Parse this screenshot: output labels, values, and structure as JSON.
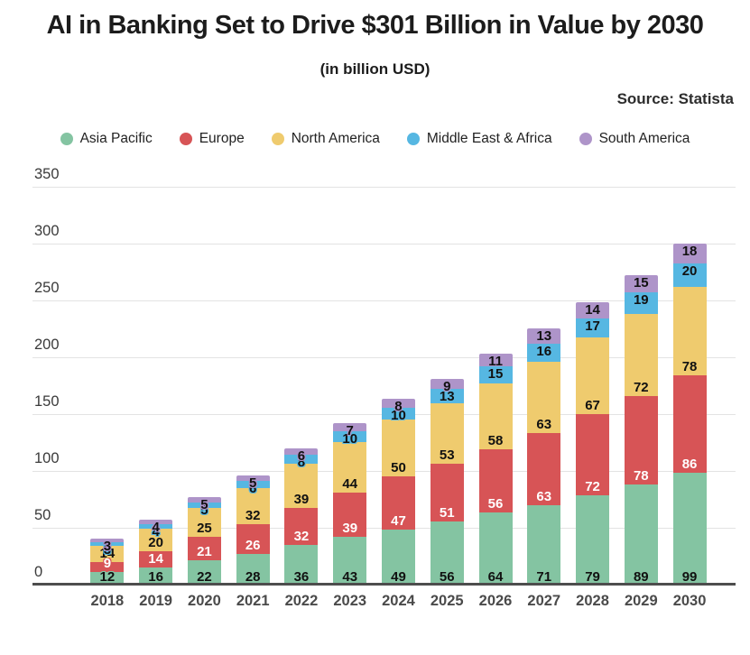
{
  "header": {
    "title": "AI in Banking Set to Drive $301 Billion in Value by 2030",
    "subtitle": "(in billion USD)",
    "source": "Source: Statista"
  },
  "chart_data": {
    "type": "bar",
    "stacked": true,
    "title": "AI in Banking Set to Drive $301 Billion in Value by 2030",
    "subtitle": "(in billion USD)",
    "source": "Source: Statista",
    "categories": [
      "2018",
      "2019",
      "2020",
      "2021",
      "2022",
      "2023",
      "2024",
      "2025",
      "2026",
      "2027",
      "2028",
      "2029",
      "2030"
    ],
    "series": [
      {
        "name": "Asia Pacific",
        "color": "#84c4a2",
        "label_color": "#111111",
        "values": [
          12,
          16,
          22,
          28,
          36,
          43,
          49,
          56,
          64,
          71,
          79,
          89,
          99
        ]
      },
      {
        "name": "Europe",
        "color": "#d75456",
        "label_color": "#ffffff",
        "values": [
          9,
          14,
          21,
          26,
          32,
          39,
          47,
          51,
          56,
          63,
          72,
          78,
          86
        ]
      },
      {
        "name": "North America",
        "color": "#efcb6e",
        "label_color": "#111111",
        "values": [
          14,
          20,
          25,
          32,
          39,
          44,
          50,
          53,
          58,
          63,
          67,
          72,
          78
        ]
      },
      {
        "name": "Middle East & Africa",
        "color": "#56b7e2",
        "label_color": "#111111",
        "values": [
          3,
          4,
          5,
          6,
          8,
          10,
          10,
          13,
          15,
          16,
          17,
          19,
          20
        ]
      },
      {
        "name": "South America",
        "color": "#ae94c9",
        "label_color": "#111111",
        "values": [
          3,
          4,
          5,
          5,
          6,
          7,
          8,
          9,
          11,
          13,
          14,
          15,
          18
        ]
      }
    ],
    "totals": [
      41,
      58,
      78,
      97,
      121,
      143,
      164,
      182,
      204,
      226,
      249,
      273,
      301
    ],
    "ylim": [
      0,
      350
    ],
    "yticks": [
      0,
      50,
      100,
      150,
      200,
      250,
      300,
      350
    ],
    "grid": true,
    "legend_position": "top",
    "axis_color": "#4d4d4d",
    "grid_color": "#e3e3e3"
  }
}
